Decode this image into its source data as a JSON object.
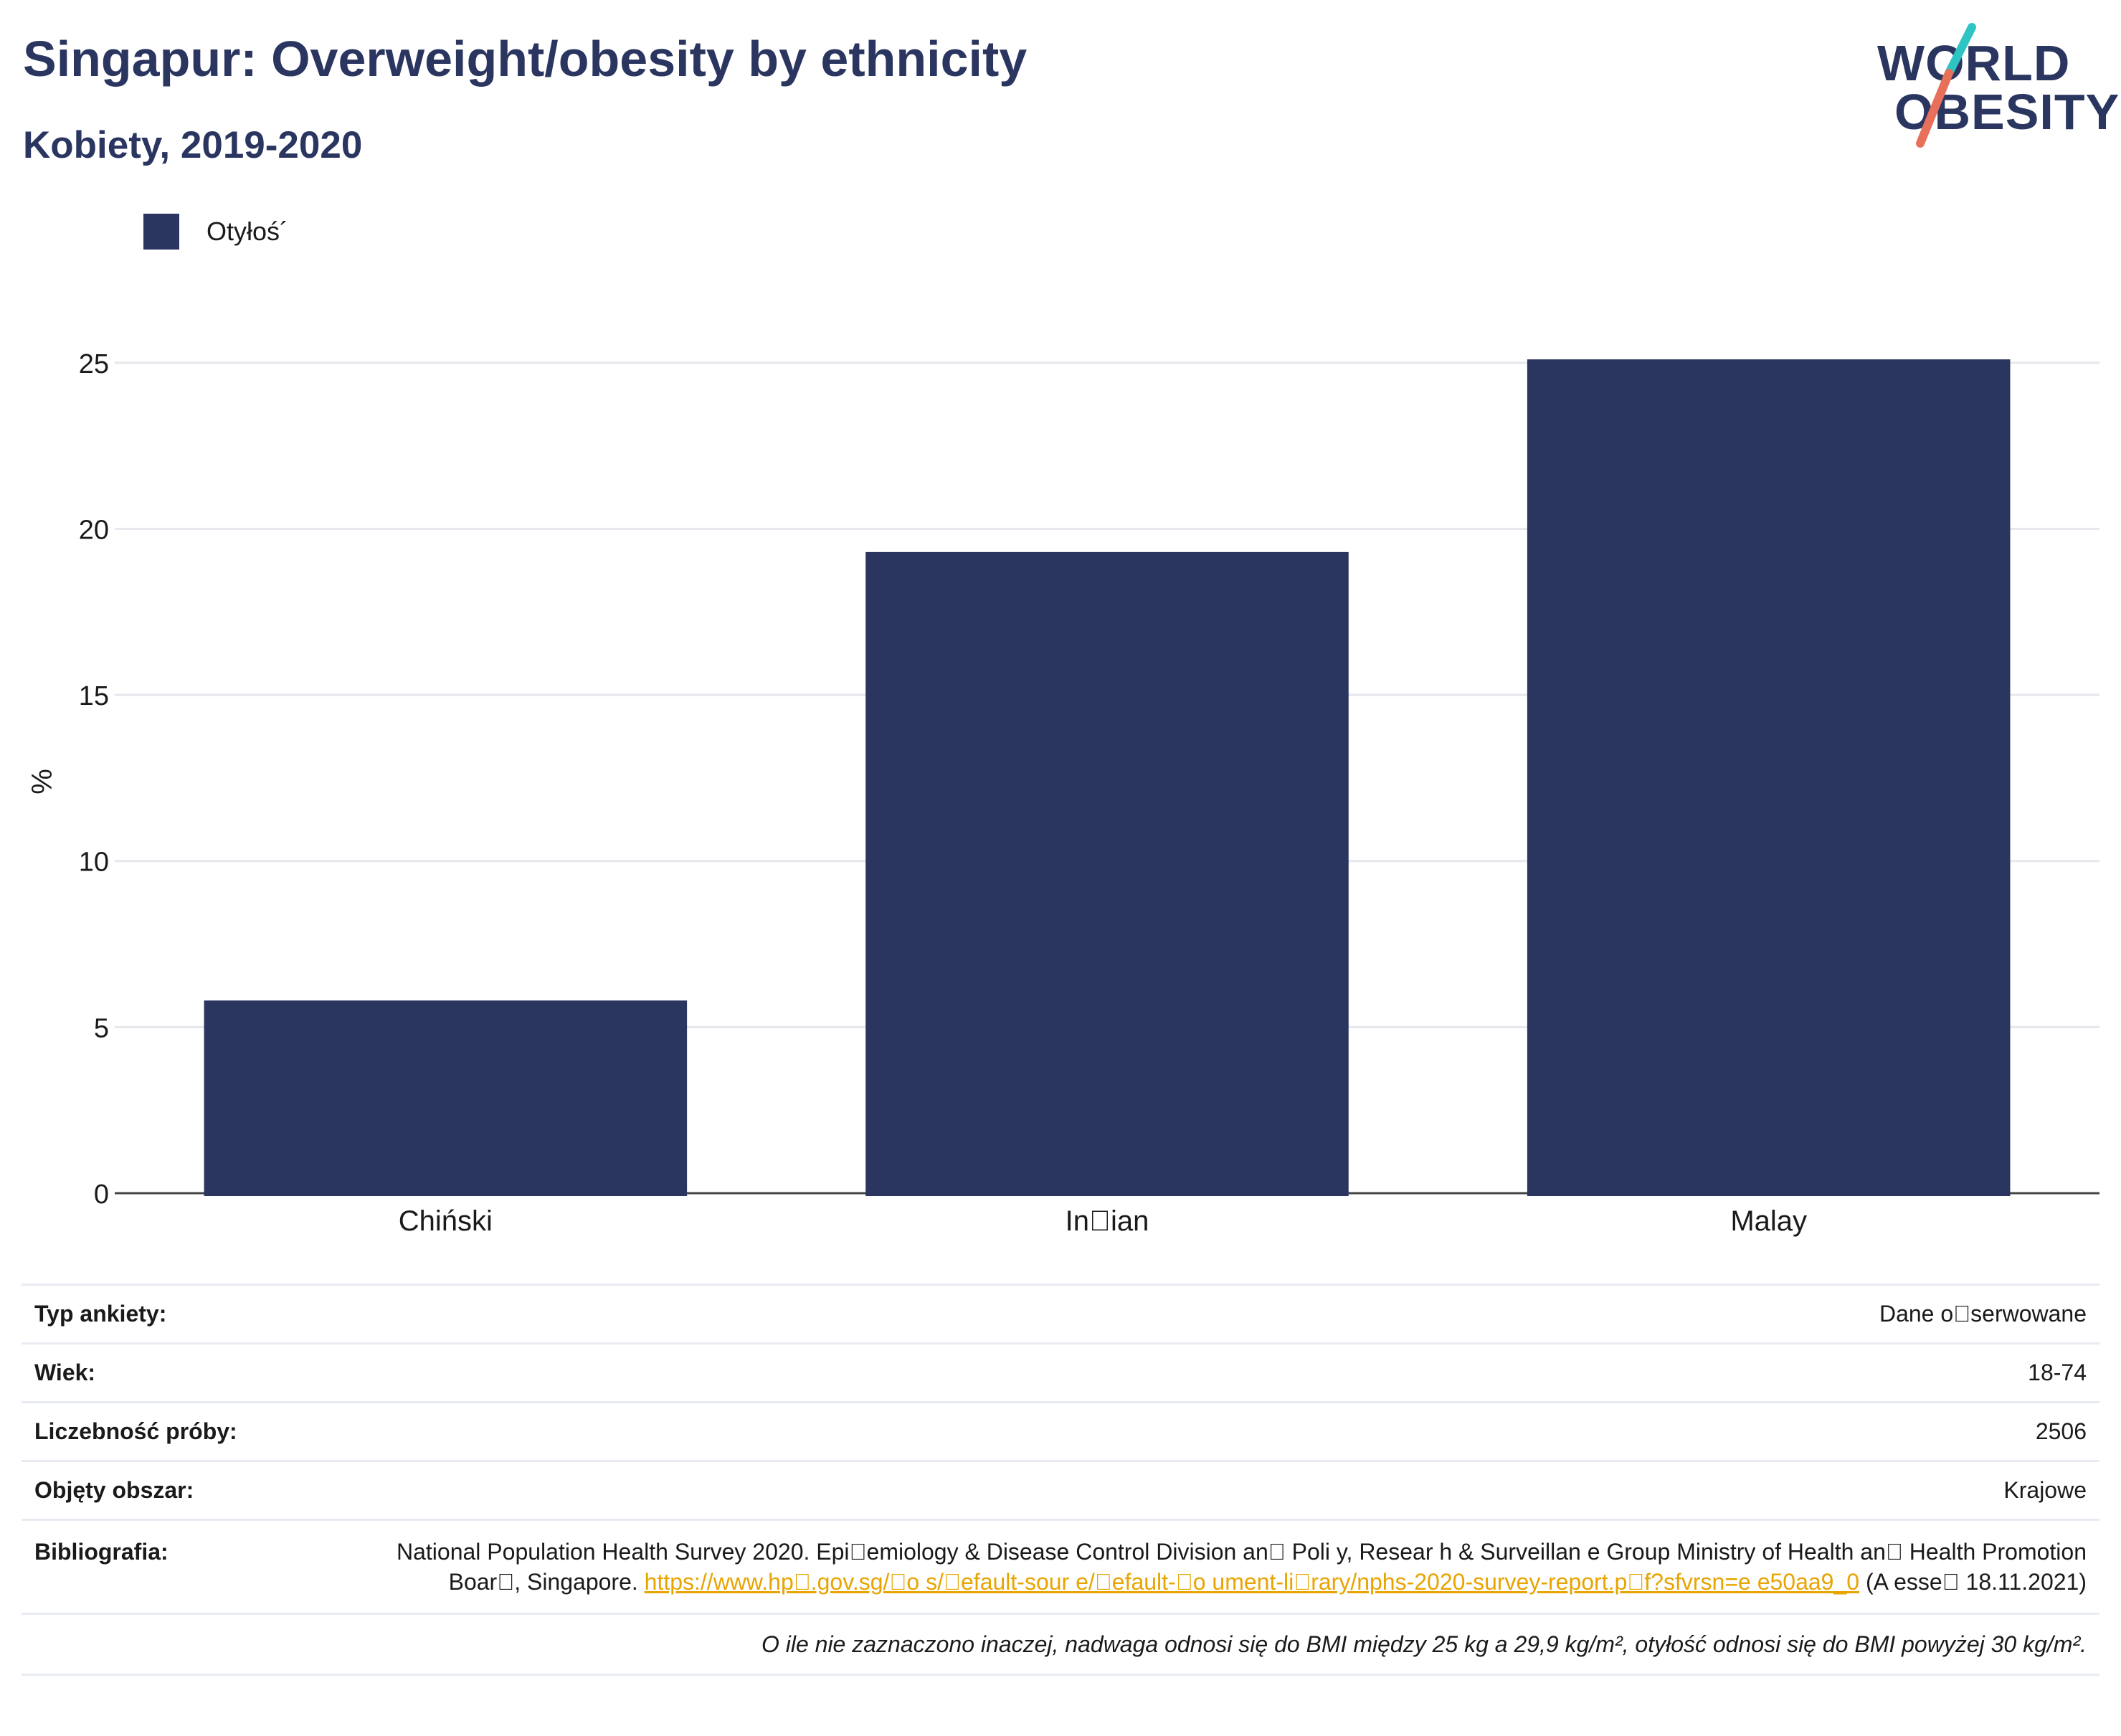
{
  "header": {
    "title": "Singapur: Overweight/obesity by ethnicity",
    "subtitle": "Kobiety, 2019-2020"
  },
  "logo": {
    "line1": "WORLD",
    "line2": "OBESITY",
    "accent_teal": "#2ec4c4",
    "accent_coral": "#e8705a"
  },
  "colors": {
    "bar": "#2a3560",
    "grid": "#e6e8ee",
    "axis": "#444444",
    "link": "#e8a400"
  },
  "chart_data": {
    "type": "bar",
    "categories": [
      "Chiński",
      "In\u0000ian",
      "Malay"
    ],
    "series": [
      {
        "name": "Otyłoś´",
        "values": [
          5.8,
          19.3,
          25.1
        ]
      }
    ],
    "xlabel": "",
    "ylabel": "%",
    "ylim": [
      0,
      27.5
    ],
    "yticks": [
      0,
      5,
      10,
      15,
      20,
      25
    ],
    "grid": true,
    "legend": "top-left"
  },
  "info": {
    "survey_type_label": "Typ ankiety:",
    "survey_type_value": "Dane o\u0000serwowane",
    "age_label": "Wiek:",
    "age_value": "18-74",
    "sample_label": "Liczebność próby:",
    "sample_value": "2506",
    "area_label": "Objęty obszar:",
    "area_value": "Krajowe",
    "bib_label": "Bibliografia:",
    "bib_text": "National Population Health Survey 2020. Epi\u0000emiology & Disease Control Division an\u0000 Poli y, Resear h & Surveillan e Group Ministry of Health an\u0000 Health Promotion Boar\u0000, Singapore.",
    "bib_link": "https://www.hp\u0000.gov.sg/\u0000o s/\u0000efault-sour e/\u0000efault-\u0000o ument-li\u0000rary/nphs-2020-survey-report.p\u0000f?sfvrsn=e e50aa9_0",
    "bib_accessed": "(A esse\u0000 18.11.2021)",
    "footnote": "O ile nie zaznaczono inaczej, nadwaga odnosi się do BMI między 25 kg a 29,9 kg/m², otyłość odnosi się do BMI powyżej 30 kg/m²."
  }
}
